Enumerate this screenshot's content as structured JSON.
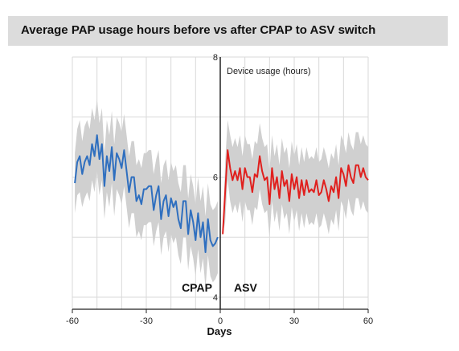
{
  "header": {
    "title": "Average PAP usage hours before vs after CPAP to ASV switch"
  },
  "chart_data": {
    "type": "line",
    "title": "Average PAP usage hours before vs after CPAP to ASV switch",
    "xlabel": "Days",
    "ylabel": "Device usage (hours)",
    "xlim": [
      -60,
      60
    ],
    "ylim": [
      3.8,
      8
    ],
    "x_ticks": [
      -60,
      -30,
      0,
      30,
      60
    ],
    "y_ticks": [
      4,
      6,
      8
    ],
    "grid": true,
    "annotations": [
      "CPAP",
      "ASV"
    ],
    "colors": {
      "cpap": "#2f6fbf",
      "asv": "#e0201e",
      "band": "#d0d0d0",
      "grid": "#d9d9d9",
      "title_bg": "#dcdcdc"
    },
    "series": [
      {
        "x": [
          -59,
          -58,
          -57,
          -56,
          -55,
          -54,
          -53,
          -52,
          -51,
          -50,
          -49,
          -48,
          -47,
          -46,
          -45,
          -44,
          -43,
          -42,
          -41,
          -40,
          -39,
          -38,
          -37,
          -36,
          -35,
          -34,
          -33,
          -32,
          -31,
          -30,
          -29,
          -28,
          -27,
          -26,
          -25,
          -24,
          -23,
          -22,
          -21,
          -20,
          -19,
          -18,
          -17,
          -16,
          -15,
          -14,
          -13,
          -12,
          -11,
          -10,
          -9,
          -8,
          -7,
          -6,
          -5,
          -4,
          -3,
          -2,
          -1
        ],
        "y": [
          5.9,
          6.25,
          6.35,
          6.05,
          6.25,
          6.35,
          6.2,
          6.55,
          6.35,
          6.7,
          6.3,
          6.55,
          5.85,
          6.35,
          6.1,
          6.5,
          5.95,
          6.4,
          6.3,
          6.15,
          6.45,
          6.1,
          5.75,
          6.0,
          6.0,
          5.6,
          5.7,
          5.55,
          5.8,
          5.8,
          5.85,
          5.85,
          5.45,
          5.7,
          5.85,
          5.3,
          5.6,
          5.7,
          5.35,
          5.65,
          5.5,
          5.6,
          5.3,
          5.15,
          5.6,
          5.6,
          5.05,
          5.45,
          5.25,
          4.95,
          5.4,
          5.0,
          5.25,
          4.75,
          5.3,
          4.95,
          4.85,
          4.9,
          5.0
        ],
        "lower": [
          5.4,
          5.7,
          5.75,
          5.5,
          5.65,
          5.75,
          5.6,
          5.95,
          5.75,
          6.1,
          5.7,
          5.95,
          5.3,
          5.75,
          5.5,
          5.9,
          5.35,
          5.8,
          5.7,
          5.55,
          5.85,
          5.5,
          5.15,
          5.4,
          5.4,
          5.0,
          5.1,
          4.95,
          5.2,
          5.2,
          5.25,
          5.25,
          4.85,
          5.1,
          5.25,
          4.7,
          5.0,
          5.1,
          4.75,
          5.05,
          4.9,
          5.0,
          4.7,
          4.55,
          5.0,
          5.0,
          4.45,
          4.85,
          4.65,
          4.35,
          4.8,
          4.4,
          4.65,
          4.15,
          4.7,
          4.35,
          4.25,
          4.3,
          4.4
        ],
        "upper": [
          6.4,
          6.8,
          6.95,
          6.6,
          6.85,
          6.95,
          6.8,
          7.15,
          6.95,
          7.3,
          6.9,
          7.15,
          6.4,
          6.95,
          6.7,
          7.1,
          6.55,
          7.0,
          6.9,
          6.75,
          7.05,
          6.7,
          6.35,
          6.6,
          6.6,
          6.2,
          6.3,
          6.15,
          6.4,
          6.4,
          6.45,
          6.45,
          6.05,
          6.3,
          6.45,
          5.9,
          6.2,
          6.3,
          5.95,
          6.25,
          6.1,
          6.2,
          5.9,
          5.75,
          6.2,
          6.2,
          5.65,
          6.05,
          5.85,
          5.55,
          6.0,
          5.6,
          5.85,
          5.35,
          5.9,
          5.55,
          5.45,
          5.5,
          5.6
        ]
      },
      {
        "x": [
          1,
          2,
          3,
          4,
          5,
          6,
          7,
          8,
          9,
          10,
          11,
          12,
          13,
          14,
          15,
          16,
          17,
          18,
          19,
          20,
          21,
          22,
          23,
          24,
          25,
          26,
          27,
          28,
          29,
          30,
          31,
          32,
          33,
          34,
          35,
          36,
          37,
          38,
          39,
          40,
          41,
          42,
          43,
          44,
          45,
          46,
          47,
          48,
          49,
          50,
          51,
          52,
          53,
          54,
          55,
          56,
          57,
          58,
          59,
          60
        ],
        "y": [
          5.05,
          5.75,
          6.45,
          6.15,
          5.95,
          6.1,
          5.95,
          6.15,
          5.8,
          6.15,
          6.0,
          6.0,
          5.75,
          6.05,
          6.0,
          6.35,
          6.1,
          5.95,
          6.0,
          5.55,
          6.15,
          5.8,
          6.0,
          5.65,
          6.1,
          5.85,
          5.95,
          5.6,
          6.05,
          5.8,
          6.0,
          5.65,
          5.95,
          5.7,
          5.95,
          5.75,
          5.8,
          5.75,
          5.95,
          5.7,
          5.75,
          5.95,
          5.8,
          5.6,
          5.85,
          5.75,
          6.0,
          5.65,
          6.15,
          6.05,
          5.85,
          6.2,
          6.0,
          5.9,
          6.2,
          6.2,
          6.0,
          6.15,
          6.0,
          5.95
        ],
        "lower": [
          5.05,
          5.25,
          5.95,
          5.6,
          5.4,
          5.55,
          5.4,
          5.6,
          5.25,
          5.6,
          5.45,
          5.45,
          5.2,
          5.5,
          5.45,
          5.8,
          5.55,
          5.4,
          5.45,
          5.0,
          5.6,
          5.25,
          5.45,
          5.1,
          5.55,
          5.3,
          5.4,
          5.05,
          5.5,
          5.25,
          5.45,
          5.1,
          5.4,
          5.15,
          5.4,
          5.2,
          5.25,
          5.2,
          5.4,
          5.15,
          5.2,
          5.4,
          5.25,
          5.05,
          5.3,
          5.2,
          5.45,
          5.1,
          5.6,
          5.5,
          5.3,
          5.65,
          5.45,
          5.35,
          5.65,
          5.65,
          5.45,
          5.6,
          5.45,
          5.4
        ],
        "upper": [
          5.05,
          6.25,
          6.95,
          6.7,
          6.5,
          6.65,
          6.5,
          6.7,
          6.35,
          6.7,
          6.55,
          6.55,
          6.3,
          6.6,
          6.55,
          6.9,
          6.65,
          6.5,
          6.55,
          6.1,
          6.7,
          6.35,
          6.55,
          6.2,
          6.65,
          6.4,
          6.5,
          6.15,
          6.6,
          6.35,
          6.55,
          6.2,
          6.5,
          6.25,
          6.5,
          6.3,
          6.35,
          6.3,
          6.5,
          6.25,
          6.3,
          6.5,
          6.35,
          6.15,
          6.4,
          6.3,
          6.55,
          6.2,
          6.7,
          6.6,
          6.4,
          6.75,
          6.55,
          6.45,
          6.75,
          6.75,
          6.55,
          6.7,
          6.55,
          6.5
        ]
      }
    ]
  }
}
